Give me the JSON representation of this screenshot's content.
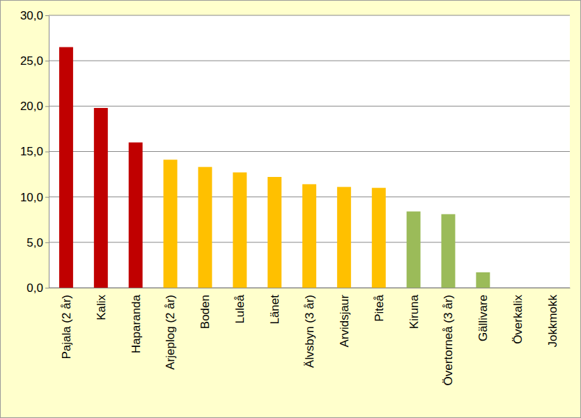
{
  "chart_data": {
    "type": "bar",
    "categories": [
      "Pajala (2 år)",
      "Kalix",
      "Haparanda",
      "Arjeplog (2 år)",
      "Boden",
      "Luleå",
      "Länet",
      "Älvsbyn (3 år)",
      "Arvidsjaur",
      "Piteå",
      "Kiruna",
      "Övertorneå (3 år)",
      "Gällivare",
      "Överkalix",
      "Jokkmokk"
    ],
    "values": [
      26.5,
      19.8,
      16.0,
      14.1,
      13.3,
      12.7,
      12.2,
      11.4,
      11.1,
      11.0,
      8.4,
      8.1,
      1.7,
      0,
      0
    ],
    "colors": [
      "#c00000",
      "#c00000",
      "#c00000",
      "#ffc000",
      "#ffc000",
      "#ffc000",
      "#ffc000",
      "#ffc000",
      "#ffc000",
      "#ffc000",
      "#9bbb59",
      "#9bbb59",
      "#9bbb59",
      "#9bbb59",
      "#9bbb59"
    ],
    "ylim": [
      0,
      30
    ],
    "yticks": [
      {
        "value": 0,
        "label": "0,0"
      },
      {
        "value": 5,
        "label": "5,0"
      },
      {
        "value": 10,
        "label": "10,0"
      },
      {
        "value": 15,
        "label": "15,0"
      },
      {
        "value": 20,
        "label": "20,0"
      },
      {
        "value": 25,
        "label": "25,0"
      },
      {
        "value": 30,
        "label": "30,0"
      }
    ],
    "grid": true
  }
}
